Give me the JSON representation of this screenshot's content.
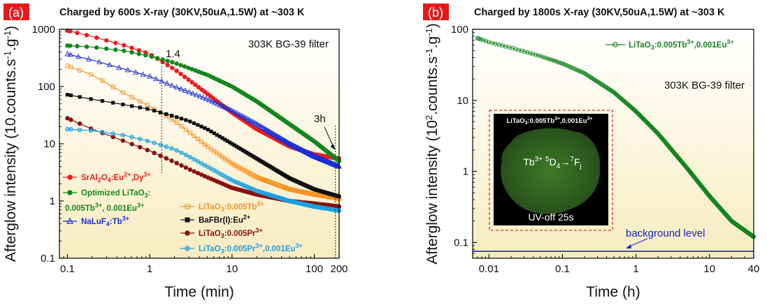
{
  "panels": [
    {
      "label": "(a)",
      "title": "Charged by 600s X-ray (30KV,50uA,1.5W) at ~303 K",
      "xlabel": "Time (min)",
      "filter_label": "303K  BG-39 filter",
      "annotations": [
        "1.4",
        "3h"
      ],
      "xticks": [
        "0.1",
        "1",
        "10",
        "100",
        "200"
      ],
      "yticks": [
        "0.1",
        "1",
        "10",
        "100",
        "1000"
      ]
    },
    {
      "label": "(b)",
      "title": "Charged by 1800s X-ray (30KV,50uA,1.5W) at ~303 K",
      "xlabel": "Time (h)",
      "filter_label": "303K BG-39 filter",
      "background_label": "background level",
      "inset": {
        "title": "LiTaO3:0.005Tb3+,0.001Eu3+",
        "transition": "Tb3+ 5D4→7Fj",
        "caption": "UV-off 25s"
      },
      "xticks": [
        "0.01",
        "0.1",
        "1",
        "10",
        "40"
      ],
      "yticks": [
        "0.1",
        "1",
        "10",
        "100"
      ]
    }
  ],
  "ylabel_a": "Afterglow intensity (10.counts.s-1.g-1)",
  "ylabel_b": "Afterglow intensity (102.counts.s-1.g-1)",
  "colors": {
    "label_bg": "#e8191b",
    "sral": "#ee1c1c",
    "optimized": "#15861f",
    "naluf": "#1730d8",
    "tb": "#f6921e",
    "bafbr": "#111111",
    "pr": "#8b1010",
    "preu": "#1ba1e2",
    "bg_line": "#1a22c8",
    "inset_border": "#e03030",
    "inset_green": "#2d5a1c",
    "plot_bg_top": "#ffffff",
    "plot_bg_bottom": "#f7ecc0"
  },
  "chart_data": [
    {
      "type": "line",
      "title": "Charged by 600s X-ray (30KV,50uA,1.5W) at ~303 K",
      "xlabel": "Time (min)",
      "ylabel": "Afterglow intensity (10.counts.s-1.g-1)",
      "xscale": "log",
      "yscale": "log",
      "xlim": [
        0.08,
        200
      ],
      "ylim": [
        0.1,
        1000
      ],
      "series": [
        {
          "name": "SrAl2O4:Eu2+,Dy3+",
          "color": "#ee1c1c",
          "marker": "filled-circle",
          "x": [
            0.1,
            0.2,
            0.5,
            1,
            2,
            3,
            5,
            10,
            20,
            50,
            100,
            200
          ],
          "y": [
            950,
            750,
            520,
            370,
            200,
            130,
            75,
            35,
            18,
            9,
            6.5,
            5.5
          ]
        },
        {
          "name": "Optimized LiTaO3: 0.005Tb3+, 0.001Eu3+",
          "color": "#15861f",
          "marker": "filled-circle",
          "x": [
            0.1,
            0.2,
            0.5,
            1,
            2,
            3,
            5,
            10,
            20,
            50,
            100,
            200
          ],
          "y": [
            520,
            490,
            420,
            340,
            260,
            210,
            160,
            100,
            55,
            22,
            11,
            5
          ]
        },
        {
          "name": "NaLuF4:Tb3+",
          "color": "#1730d8",
          "marker": "open-triangle",
          "x": [
            0.1,
            0.2,
            0.5,
            1,
            2,
            3,
            5,
            10,
            20,
            50,
            100,
            200
          ],
          "y": [
            370,
            290,
            200,
            150,
            100,
            80,
            60,
            38,
            22,
            10,
            6,
            4
          ]
        },
        {
          "name": "LiTaO3:0.005Tb3+",
          "color": "#f6921e",
          "marker": "open-square",
          "x": [
            0.1,
            0.2,
            0.5,
            1,
            2,
            3,
            5,
            10,
            20,
            50,
            100,
            200
          ],
          "y": [
            230,
            160,
            75,
            45,
            25,
            16,
            9,
            4.5,
            2.6,
            1.6,
            1.3,
            1.1
          ]
        },
        {
          "name": "BaFBr(I):Eu2+",
          "color": "#111111",
          "marker": "filled-square",
          "x": [
            0.1,
            0.2,
            0.5,
            1,
            2,
            3,
            5,
            10,
            20,
            50,
            100,
            200
          ],
          "y": [
            72,
            60,
            48,
            40,
            30,
            25,
            18,
            10,
            5.5,
            2.5,
            1.6,
            1.2
          ]
        },
        {
          "name": "LiTaO3:0.005Pr3+",
          "color": "#8b1010",
          "marker": "filled-circle",
          "x": [
            0.1,
            0.2,
            0.5,
            1,
            2,
            3,
            5,
            10,
            20,
            50,
            100,
            200
          ],
          "y": [
            28,
            18,
            11,
            7.5,
            4.8,
            3.6,
            2.6,
            1.7,
            1.3,
            1.0,
            0.9,
            0.8
          ]
        },
        {
          "name": "LiTaO3:0.005Pr3+,0.001Eu3+",
          "color": "#1ba1e2",
          "marker": "half-circle",
          "x": [
            0.1,
            0.2,
            0.5,
            1,
            2,
            3,
            5,
            10,
            20,
            50,
            100,
            200
          ],
          "y": [
            18,
            17,
            14,
            11,
            8,
            6,
            4,
            2.3,
            1.5,
            1.0,
            0.8,
            0.68
          ]
        }
      ]
    },
    {
      "type": "line",
      "title": "Charged by 1800s X-ray (30KV,50uA,1.5W) at ~303 K",
      "xlabel": "Time (h)",
      "ylabel": "Afterglow intensity (102.counts.s-1.g-1)",
      "xscale": "log",
      "yscale": "log",
      "xlim": [
        0.006,
        40
      ],
      "ylim": [
        0.06,
        100
      ],
      "series": [
        {
          "name": "LiTaO3:0.005Tb3+,0.001Eu3+",
          "color": "#15861f",
          "marker": "open-circle",
          "x": [
            0.007,
            0.01,
            0.02,
            0.05,
            0.1,
            0.2,
            0.5,
            1,
            2,
            5,
            10,
            20,
            40
          ],
          "y": [
            75,
            66,
            55,
            42,
            33,
            24,
            13,
            7,
            3.4,
            1.1,
            0.45,
            0.2,
            0.12
          ]
        },
        {
          "name": "background level",
          "color": "#1a22c8",
          "marker": "none",
          "x": [
            0.006,
            40
          ],
          "y": [
            0.075,
            0.075
          ]
        }
      ]
    }
  ]
}
